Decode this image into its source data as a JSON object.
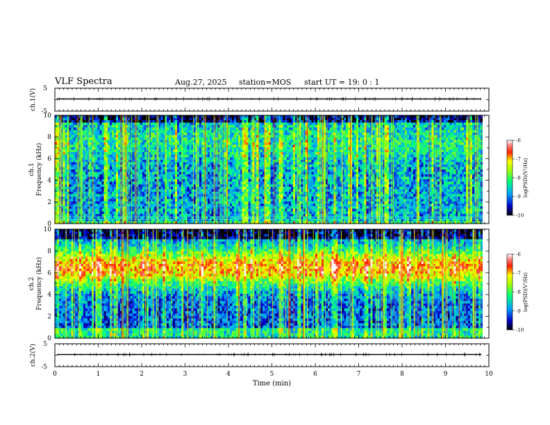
{
  "header": {
    "title": "VLF Spectra",
    "date": "Aug.27, 2025",
    "station": "station=MOS",
    "start": "start UT = 19: 0 : 1"
  },
  "chart_data": [
    {
      "type": "line",
      "panel": "ch1-voltage",
      "ylabel": "ch.1(V)",
      "yticks": [
        "5",
        "-5"
      ],
      "ylim": [
        -5,
        5
      ],
      "xlim": [
        0,
        10
      ],
      "description_values": [
        0
      ]
    },
    {
      "type": "heatmap",
      "panel": "ch1-spectrogram",
      "ylabel": "ch.1\nFrequency (kHz)",
      "ylabel_lines": [
        "ch.1",
        "Frequency (kHz)"
      ],
      "yticks": [
        "0",
        "2",
        "4",
        "6",
        "8",
        "10"
      ],
      "ylim": [
        0,
        10
      ],
      "xlim": [
        0,
        9.85
      ],
      "colorbar": {
        "ticks": [
          "-6",
          "-7",
          "-8",
          "-9",
          "-10"
        ],
        "label": "log(PSD)(V²/Hz)",
        "range": [
          -10,
          -6
        ]
      },
      "bands_khz": [
        0.4,
        0.6,
        1.6
      ]
    },
    {
      "type": "heatmap",
      "panel": "ch2-spectrogram",
      "ylabel_lines": [
        "ch.2",
        "Frequency (kHz)"
      ],
      "yticks": [
        "0",
        "2",
        "4",
        "6",
        "8",
        "10"
      ],
      "ylim": [
        0,
        10
      ],
      "xlim": [
        0,
        9.85
      ],
      "colorbar": {
        "ticks": [
          "-6",
          "-7",
          "-8",
          "-9",
          "-10"
        ],
        "label": "log(PSD)(V²/Hz)",
        "range": [
          -10,
          -6
        ]
      },
      "peak_band_khz": [
        5,
        8
      ]
    },
    {
      "type": "line",
      "panel": "ch2-voltage",
      "ylabel": "ch.2(V)",
      "yticks": [
        "5",
        "-5"
      ],
      "ylim": [
        -5,
        5
      ],
      "xlim": [
        0,
        10
      ]
    }
  ],
  "xaxis": {
    "label": "Time (min)",
    "ticks": [
      "0",
      "1",
      "2",
      "3",
      "4",
      "5",
      "6",
      "7",
      "8",
      "9",
      "10"
    ],
    "range": [
      0,
      10
    ]
  },
  "colors": {
    "frame": "#000000",
    "background": "#ffffff"
  }
}
